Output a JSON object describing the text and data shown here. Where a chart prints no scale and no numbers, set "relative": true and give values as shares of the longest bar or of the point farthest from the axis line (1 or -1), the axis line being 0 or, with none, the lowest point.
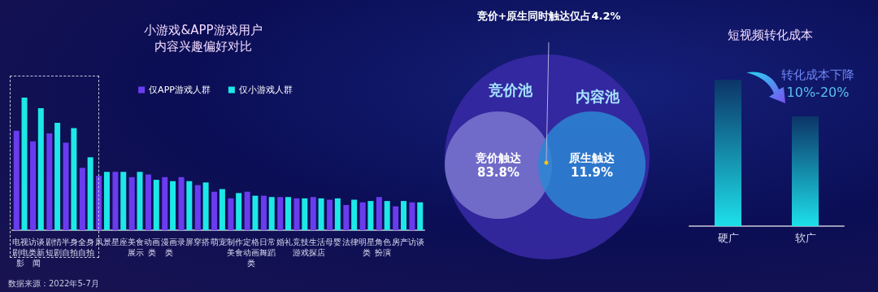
{
  "chart_data": [
    {
      "type": "bar",
      "title": "小游戏&APP游戏用户内容兴趣偏好对比",
      "relative": true,
      "legend": "top",
      "categories": [
        "电视剧电影",
        "访谈类新闻",
        "剧情短剧",
        "半身自拍",
        "全身自拍",
        "风景",
        "星座",
        "美食展示",
        "动画类",
        "漫画类",
        "录屏",
        "穿搭",
        "萌宠",
        "制作美食",
        "定格动画类",
        "日常舞蹈",
        "婚礼",
        "竞技游戏",
        "生活探店",
        "母婴",
        "法律",
        "明星类",
        "角色扮演",
        "房产",
        "访谈"
      ],
      "series": [
        {
          "name": "仅APP游戏人群",
          "color": "#6a3cf0",
          "values": [
            0.75,
            0.67,
            0.73,
            0.66,
            0.47,
            0.41,
            0.44,
            0.4,
            0.42,
            0.4,
            0.4,
            0.34,
            0.29,
            0.24,
            0.29,
            0.26,
            0.25,
            0.24,
            0.25,
            0.23,
            0.19,
            0.21,
            0.25,
            0.18,
            0.21
          ]
        },
        {
          "name": "仅小游戏人群",
          "color": "#1de8e8",
          "values": [
            1,
            0.92,
            0.81,
            0.77,
            0.55,
            0.44,
            0.44,
            0.44,
            0.38,
            0.37,
            0.37,
            0.36,
            0.31,
            0.28,
            0.26,
            0.25,
            0.25,
            0.24,
            0.24,
            0.24,
            0.23,
            0.22,
            0.22,
            0.22,
            0.21
          ]
        }
      ],
      "annotations": [
        "数据来源：2022年5-7月"
      ]
    },
    {
      "type": "other",
      "title": "竞价+原生同时触达仅占4.2%",
      "categories": [
        "竞价触达",
        "原生触达"
      ],
      "values": [
        83.8,
        11.9
      ],
      "value_labels": [
        "83.8%",
        "11.9%"
      ],
      "colors": [
        "#7b78cf",
        "#2b86d4"
      ],
      "annotations": [
        "竞价池",
        "内容池"
      ]
    },
    {
      "type": "bar",
      "title": "短视频转化成本",
      "relative": true,
      "categories": [
        "硬广",
        "软广"
      ],
      "values": [
        1,
        0.75
      ],
      "color": "#1de0ea",
      "annotations": [
        "转化成本下降",
        "10%-20%"
      ]
    }
  ]
}
